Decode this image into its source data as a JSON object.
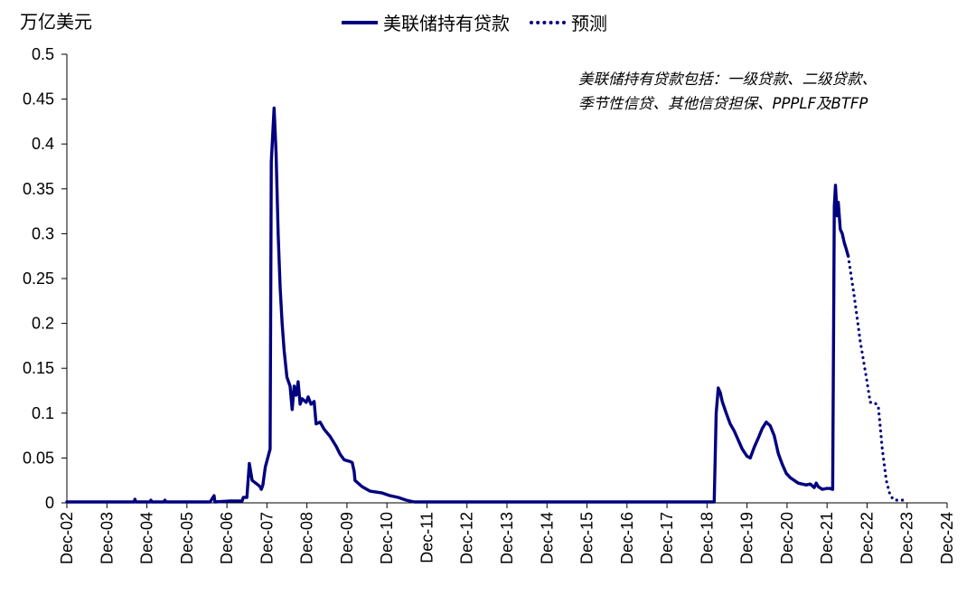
{
  "chart_data": {
    "type": "line",
    "unit_label": "万亿美元",
    "note_lines": [
      "美联储持有贷款包括：一级贷款、二级贷款、",
      "季节性信贷、其他信贷担保、PPPLF及BTFP"
    ],
    "ylim": [
      0,
      0.5
    ],
    "xlim": [
      2002.92,
      2024.92
    ],
    "y_ticks": [
      {
        "value": 0,
        "label": "0"
      },
      {
        "value": 0.05,
        "label": "0.05"
      },
      {
        "value": 0.1,
        "label": "0.1"
      },
      {
        "value": 0.15,
        "label": "0.15"
      },
      {
        "value": 0.2,
        "label": "0.2"
      },
      {
        "value": 0.25,
        "label": "0.25"
      },
      {
        "value": 0.3,
        "label": "0.3"
      },
      {
        "value": 0.35,
        "label": "0.35"
      },
      {
        "value": 0.4,
        "label": "0.4"
      },
      {
        "value": 0.45,
        "label": "0.45"
      },
      {
        "value": 0.5,
        "label": "0.5"
      }
    ],
    "x_ticks": [
      {
        "value": 2002.92,
        "label": "Dec-02"
      },
      {
        "value": 2003.92,
        "label": "Dec-03"
      },
      {
        "value": 2004.92,
        "label": "Dec-04"
      },
      {
        "value": 2005.92,
        "label": "Dec-05"
      },
      {
        "value": 2006.92,
        "label": "Dec-06"
      },
      {
        "value": 2007.92,
        "label": "Dec-07"
      },
      {
        "value": 2008.92,
        "label": "Dec-08"
      },
      {
        "value": 2009.92,
        "label": "Dec-09"
      },
      {
        "value": 2010.92,
        "label": "Dec-10"
      },
      {
        "value": 2011.92,
        "label": "Dec-11"
      },
      {
        "value": 2012.92,
        "label": "Dec-12"
      },
      {
        "value": 2013.92,
        "label": "Dec-13"
      },
      {
        "value": 2014.92,
        "label": "Dec-14"
      },
      {
        "value": 2015.92,
        "label": "Dec-15"
      },
      {
        "value": 2016.92,
        "label": "Dec-16"
      },
      {
        "value": 2017.92,
        "label": "Dec-17"
      },
      {
        "value": 2018.92,
        "label": "Dec-18"
      },
      {
        "value": 2019.92,
        "label": "Dec-19"
      },
      {
        "value": 2020.92,
        "label": "Dec-20"
      },
      {
        "value": 2021.92,
        "label": "Dec-21"
      },
      {
        "value": 2022.92,
        "label": "Dec-22"
      },
      {
        "value": 2023.92,
        "label": "Dec-23"
      },
      {
        "value": 2024.92,
        "label": "Dec-24"
      }
    ],
    "series": [
      {
        "name": "美联储持有贷款",
        "style": "solid",
        "color": "#000080",
        "points": [
          [
            2002.92,
            0.001
          ],
          [
            2004.6,
            0.001
          ],
          [
            2004.62,
            0.004
          ],
          [
            2004.64,
            0.001
          ],
          [
            2005.0,
            0.001
          ],
          [
            2005.02,
            0.003
          ],
          [
            2005.04,
            0.001
          ],
          [
            2005.35,
            0.001
          ],
          [
            2005.37,
            0.003
          ],
          [
            2005.39,
            0.001
          ],
          [
            2006.5,
            0.001
          ],
          [
            2006.6,
            0.008
          ],
          [
            2006.62,
            0.001
          ],
          [
            2007.0,
            0.002
          ],
          [
            2007.3,
            0.002
          ],
          [
            2007.33,
            0.006
          ],
          [
            2007.42,
            0.006
          ],
          [
            2007.48,
            0.044
          ],
          [
            2007.55,
            0.025
          ],
          [
            2007.7,
            0.02
          ],
          [
            2007.75,
            0.018
          ],
          [
            2007.78,
            0.015
          ],
          [
            2007.82,
            0.02
          ],
          [
            2007.88,
            0.04
          ],
          [
            2008.0,
            0.06
          ],
          [
            2008.03,
            0.38
          ],
          [
            2008.1,
            0.44
          ],
          [
            2008.15,
            0.39
          ],
          [
            2008.2,
            0.3
          ],
          [
            2008.25,
            0.24
          ],
          [
            2008.3,
            0.2
          ],
          [
            2008.35,
            0.17
          ],
          [
            2008.42,
            0.14
          ],
          [
            2008.5,
            0.13
          ],
          [
            2008.55,
            0.104
          ],
          [
            2008.6,
            0.13
          ],
          [
            2008.65,
            0.12
          ],
          [
            2008.7,
            0.135
          ],
          [
            2008.75,
            0.11
          ],
          [
            2008.8,
            0.116
          ],
          [
            2008.9,
            0.112
          ],
          [
            2008.95,
            0.118
          ],
          [
            2009.02,
            0.11
          ],
          [
            2009.1,
            0.113
          ],
          [
            2009.15,
            0.088
          ],
          [
            2009.25,
            0.09
          ],
          [
            2009.35,
            0.082
          ],
          [
            2009.5,
            0.074
          ],
          [
            2009.65,
            0.063
          ],
          [
            2009.75,
            0.054
          ],
          [
            2009.85,
            0.048
          ],
          [
            2010.0,
            0.046
          ],
          [
            2010.05,
            0.045
          ],
          [
            2010.1,
            0.035
          ],
          [
            2010.12,
            0.025
          ],
          [
            2010.3,
            0.018
          ],
          [
            2010.5,
            0.013
          ],
          [
            2010.8,
            0.011
          ],
          [
            2011.0,
            0.008
          ],
          [
            2011.2,
            0.006
          ],
          [
            2011.4,
            0.003
          ],
          [
            2011.6,
            0.001
          ],
          [
            2019.0,
            0.001
          ],
          [
            2019.1,
            0.001
          ],
          [
            2019.15,
            0.1
          ],
          [
            2019.2,
            0.128
          ],
          [
            2019.25,
            0.123
          ],
          [
            2019.3,
            0.113
          ],
          [
            2019.4,
            0.1
          ],
          [
            2019.5,
            0.088
          ],
          [
            2019.6,
            0.08
          ],
          [
            2019.7,
            0.07
          ],
          [
            2019.8,
            0.06
          ],
          [
            2019.92,
            0.052
          ],
          [
            2020.0,
            0.05
          ],
          [
            2020.1,
            0.062
          ],
          [
            2020.2,
            0.072
          ],
          [
            2020.3,
            0.083
          ],
          [
            2020.4,
            0.09
          ],
          [
            2020.5,
            0.086
          ],
          [
            2020.6,
            0.075
          ],
          [
            2020.7,
            0.055
          ],
          [
            2020.8,
            0.043
          ],
          [
            2020.9,
            0.033
          ],
          [
            2021.0,
            0.028
          ],
          [
            2021.2,
            0.022
          ],
          [
            2021.4,
            0.02
          ],
          [
            2021.5,
            0.021
          ],
          [
            2021.6,
            0.017
          ],
          [
            2021.65,
            0.022
          ],
          [
            2021.7,
            0.018
          ],
          [
            2021.8,
            0.015
          ],
          [
            2021.9,
            0.016
          ],
          [
            2022.0,
            0.016
          ],
          [
            2022.06,
            0.015
          ],
          [
            2022.1,
            0.33
          ],
          [
            2022.13,
            0.354
          ],
          [
            2022.17,
            0.32
          ],
          [
            2022.2,
            0.335
          ],
          [
            2022.25,
            0.305
          ],
          [
            2022.3,
            0.3
          ],
          [
            2022.35,
            0.29
          ],
          [
            2022.4,
            0.283
          ],
          [
            2022.45,
            0.275
          ]
        ]
      },
      {
        "name": "预测",
        "style": "dotted",
        "color": "#000080",
        "points": [
          [
            2022.45,
            0.275
          ],
          [
            2022.6,
            0.23
          ],
          [
            2022.75,
            0.18
          ],
          [
            2022.9,
            0.14
          ],
          [
            2023.0,
            0.112
          ],
          [
            2023.1,
            0.112
          ],
          [
            2023.2,
            0.108
          ],
          [
            2023.3,
            0.06
          ],
          [
            2023.4,
            0.025
          ],
          [
            2023.5,
            0.008
          ],
          [
            2023.6,
            0.003
          ],
          [
            2023.92,
            0.003
          ]
        ]
      }
    ]
  }
}
